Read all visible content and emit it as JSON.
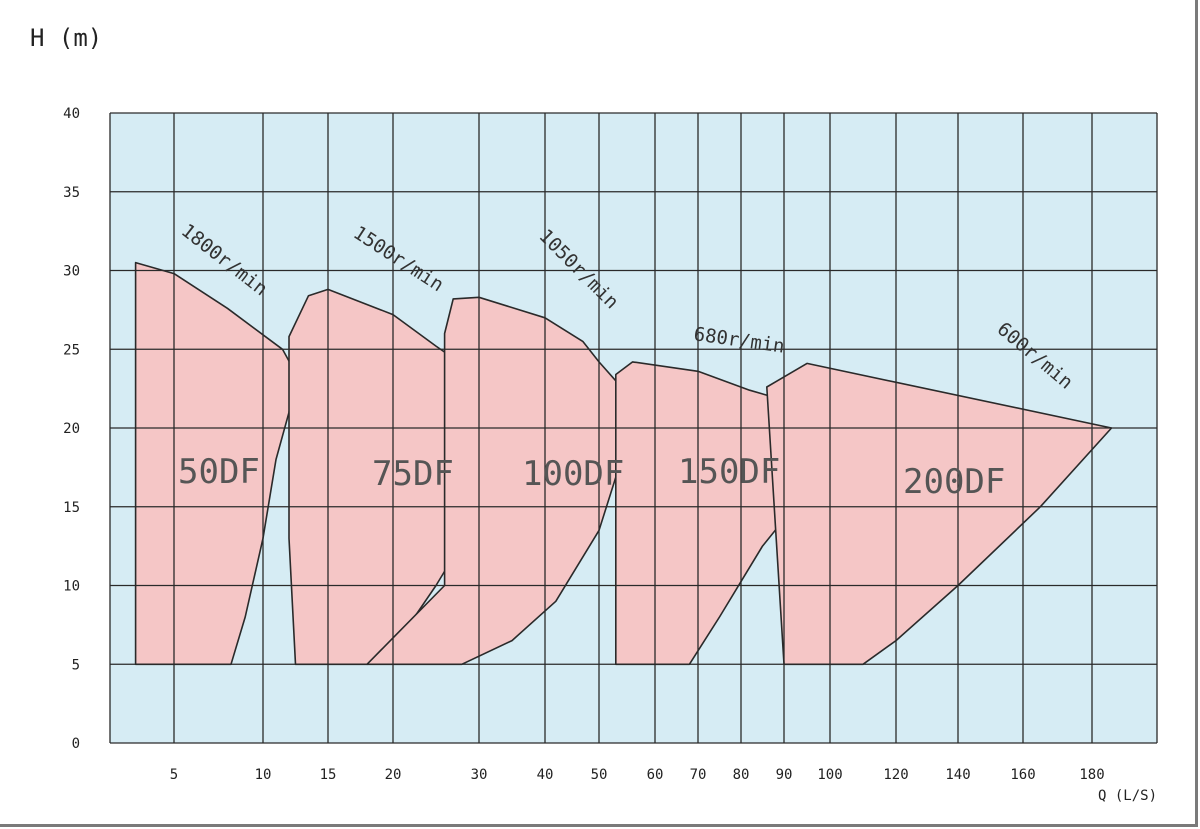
{
  "chart_data": {
    "type": "area",
    "title": "",
    "ylabel": "H (m)",
    "xlabel": "Q (L/S)",
    "ylim": [
      0,
      40
    ],
    "yticks": [
      0,
      5,
      10,
      15,
      20,
      25,
      30,
      35,
      40
    ],
    "x_scale": "nonlinear",
    "xticks": [
      5,
      10,
      15,
      20,
      30,
      40,
      50,
      60,
      70,
      80,
      90,
      100,
      120,
      140,
      160,
      180
    ],
    "grid": true,
    "colors": {
      "plot_bg": "#d6ecf4",
      "region_fill": "#f5c6c6",
      "grid": "#2a2a2a",
      "curve": "#2a2a2a"
    },
    "regions": [
      {
        "name": "50DF",
        "speed": "1800r/min",
        "boundary": [
          [
            2,
            30.5
          ],
          [
            5,
            29.8
          ],
          [
            8,
            27.6
          ],
          [
            11.5,
            25
          ],
          [
            12.5,
            23.5
          ],
          [
            12,
            21
          ],
          [
            11,
            18
          ],
          [
            10,
            13
          ],
          [
            9,
            8
          ],
          [
            8.2,
            5
          ],
          [
            2,
            5
          ]
        ]
      },
      {
        "name": "75DF",
        "speed": "1500r/min",
        "boundary": [
          [
            12,
            25.8
          ],
          [
            13.5,
            28.4
          ],
          [
            15,
            28.8
          ],
          [
            20,
            27.2
          ],
          [
            25,
            25.2
          ],
          [
            30,
            23.3
          ],
          [
            35,
            22.3
          ],
          [
            36,
            21
          ],
          [
            34,
            18
          ],
          [
            30,
            14.5
          ],
          [
            25,
            10
          ],
          [
            20,
            6
          ],
          [
            18,
            5
          ],
          [
            12.5,
            5
          ],
          [
            12,
            13
          ]
        ]
      },
      {
        "name": "100DF",
        "speed": "1050r/min",
        "boundary": [
          [
            26,
            26
          ],
          [
            27,
            28.2
          ],
          [
            30,
            28.3
          ],
          [
            40,
            27
          ],
          [
            47,
            25.5
          ],
          [
            50,
            24.2
          ],
          [
            53,
            23
          ],
          [
            55,
            22
          ],
          [
            54,
            18
          ],
          [
            50,
            13.5
          ],
          [
            42,
            9
          ],
          [
            35,
            6.5
          ],
          [
            28,
            5
          ],
          [
            18,
            5
          ],
          [
            26,
            10
          ]
        ]
      },
      {
        "name": "150DF",
        "speed": "680r/min",
        "boundary": [
          [
            53,
            23.4
          ],
          [
            56,
            24.2
          ],
          [
            70,
            23.6
          ],
          [
            82,
            22.4
          ],
          [
            92,
            21.6
          ],
          [
            100,
            20.6
          ],
          [
            102,
            20
          ],
          [
            99,
            18
          ],
          [
            95,
            16
          ],
          [
            85,
            12.5
          ],
          [
            75,
            8
          ],
          [
            68,
            5
          ],
          [
            53,
            5
          ]
        ]
      },
      {
        "name": "200DF",
        "speed": "600r/min",
        "boundary": [
          [
            86,
            22.6
          ],
          [
            95,
            24.1
          ],
          [
            183,
            20
          ],
          [
            165,
            15
          ],
          [
            140,
            10
          ],
          [
            120,
            6.5
          ],
          [
            110,
            5
          ],
          [
            90,
            5
          ]
        ]
      }
    ]
  },
  "labels": {
    "y_axis_title": "H (m)",
    "x_axis_title": "Q (L/S)",
    "yticks": [
      "0",
      "5",
      "10",
      "15",
      "20",
      "25",
      "30",
      "35",
      "40"
    ],
    "xticks": [
      "5",
      "10",
      "15",
      "20",
      "30",
      "40",
      "50",
      "60",
      "70",
      "80",
      "90",
      "100",
      "120",
      "140",
      "160",
      "180"
    ],
    "regions": [
      "50DF",
      "75DF",
      "100DF",
      "150DF",
      "200DF"
    ],
    "speeds": [
      "1800r/min",
      "1500r/min",
      "1050r/min",
      "680r/min",
      "600r/min"
    ]
  }
}
